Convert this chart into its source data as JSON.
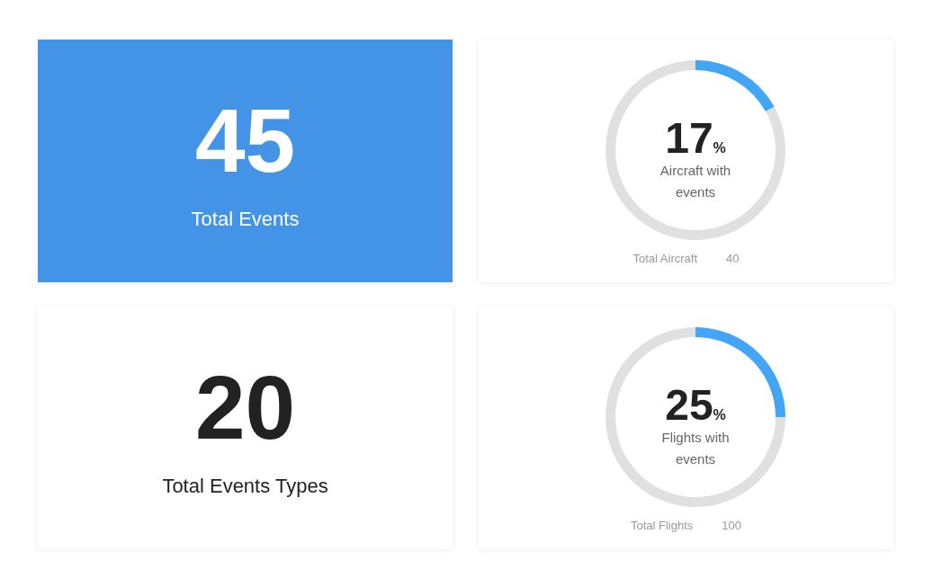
{
  "chart_data": [
    {
      "type": "other",
      "title": "45",
      "subtitle": "Total Events",
      "color": "#4393e6"
    },
    {
      "type": "donut",
      "categories": [
        null,
        null
      ],
      "values": [
        17,
        83
      ],
      "colors": [
        "#42a5f5",
        "#e0e0e0"
      ],
      "value_labels": [
        "17%",
        null
      ],
      "subtitle": "Aircraft with events",
      "annotations": [
        "Total Aircraft",
        "40"
      ]
    },
    {
      "type": "other",
      "title": "20",
      "subtitle": "Total Events Types"
    },
    {
      "type": "donut",
      "categories": [
        null,
        null
      ],
      "values": [
        25,
        75
      ],
      "colors": [
        "#42a5f5",
        "#e0e0e0"
      ],
      "value_labels": [
        "25%",
        null
      ],
      "subtitle": "Flights with events",
      "annotations": [
        "Total Flights",
        "100"
      ]
    }
  ]
}
